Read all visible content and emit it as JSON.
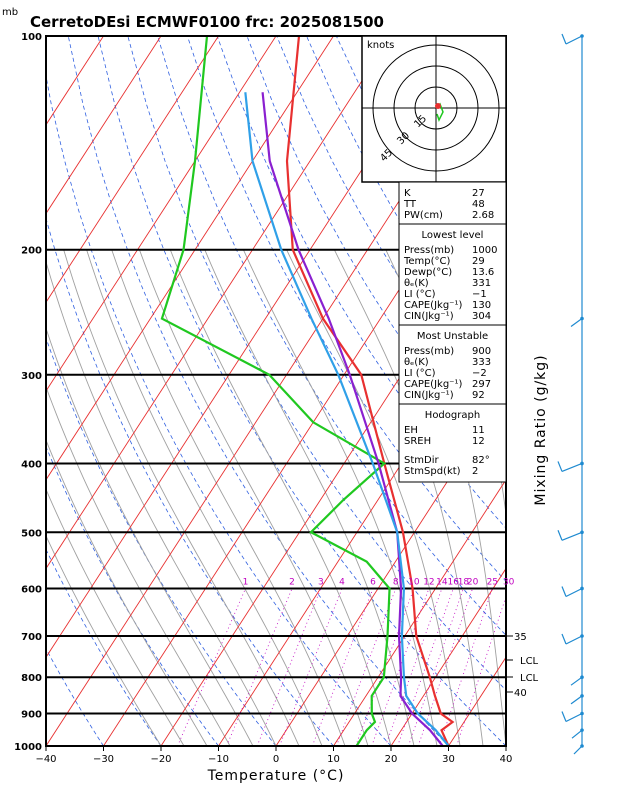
{
  "header": {
    "unit_mb": "mb",
    "title": "CerretoDEsi ECMWF0100  frc: 2025081500"
  },
  "chart_data": {
    "type": "line",
    "title": "CerretoDEsi ECMWF0100  frc: 2025081500",
    "xlabel": "Temperature (°C)",
    "ylabel": "Mixing Ratio (g/kg)",
    "xlim": [
      -40,
      40
    ],
    "ylim": [
      1000,
      100
    ],
    "x_ticks": [
      "−40",
      "−30",
      "−20",
      "−10",
      "0",
      "10",
      "20",
      "30",
      "40"
    ],
    "y_ticks": [
      "100",
      "200",
      "300",
      "400",
      "500",
      "600",
      "700",
      "800",
      "900",
      "1000"
    ],
    "mixing_ratio_labels": [
      "1",
      "2",
      "3",
      "4",
      "6",
      "8",
      "10",
      "12",
      "14",
      "16",
      "18",
      "20",
      "25",
      "30"
    ],
    "right_labels": [
      "35",
      "LCL",
      "LCL",
      "40"
    ],
    "series": [
      {
        "name": "Temperature",
        "color": "#e83030",
        "points": [
          [
            1000,
            30
          ],
          [
            950,
            27
          ],
          [
            925,
            28
          ],
          [
            900,
            25
          ],
          [
            850,
            22
          ],
          [
            800,
            19
          ],
          [
            700,
            12
          ],
          [
            600,
            6
          ],
          [
            500,
            -2
          ],
          [
            400,
            -13
          ],
          [
            300,
            -27
          ],
          [
            250,
            -40
          ],
          [
            200,
            -53
          ],
          [
            150,
            -64
          ],
          [
            100,
            -76
          ]
        ]
      },
      {
        "name": "Dewpoint",
        "color": "#20c820",
        "points": [
          [
            1000,
            14
          ],
          [
            950,
            14
          ],
          [
            925,
            14.5
          ],
          [
            900,
            13
          ],
          [
            850,
            11
          ],
          [
            800,
            11
          ],
          [
            700,
            7
          ],
          [
            600,
            2
          ],
          [
            550,
            -5
          ],
          [
            500,
            -18
          ],
          [
            450,
            -16
          ],
          [
            400,
            -13
          ],
          [
            350,
            -30
          ],
          [
            300,
            -43
          ],
          [
            250,
            -68
          ],
          [
            200,
            -72
          ],
          [
            150,
            -80
          ],
          [
            100,
            -92
          ]
        ]
      },
      {
        "name": "Parcel",
        "color": "#8a20d0",
        "points": [
          [
            1000,
            29
          ],
          [
            950,
            25
          ],
          [
            900,
            20
          ],
          [
            850,
            16
          ],
          [
            800,
            14
          ],
          [
            700,
            9
          ],
          [
            600,
            4
          ],
          [
            500,
            -3
          ],
          [
            400,
            -14
          ],
          [
            300,
            -29
          ],
          [
            250,
            -39
          ],
          [
            200,
            -52
          ],
          [
            150,
            -67
          ],
          [
            120,
            -76
          ]
        ]
      },
      {
        "name": "Parcel virtual",
        "color": "#30a0e8",
        "points": [
          [
            1000,
            30
          ],
          [
            950,
            26
          ],
          [
            900,
            21
          ],
          [
            850,
            17
          ],
          [
            800,
            14.5
          ],
          [
            700,
            9.5
          ],
          [
            600,
            4.5
          ],
          [
            500,
            -3
          ],
          [
            400,
            -15
          ],
          [
            300,
            -31
          ],
          [
            250,
            -42
          ],
          [
            200,
            -55
          ],
          [
            150,
            -70
          ],
          [
            120,
            -79
          ]
        ]
      }
    ],
    "wind_barbs": [
      {
        "p": 1000,
        "speed_kt": 2
      },
      {
        "p": 950,
        "speed_kt": 4
      },
      {
        "p": 900,
        "speed_kt": 10
      },
      {
        "p": 850,
        "speed_kt": 5
      },
      {
        "p": 800,
        "speed_kt": 5
      },
      {
        "p": 700,
        "speed_kt": 10
      },
      {
        "p": 600,
        "speed_kt": 10
      },
      {
        "p": 500,
        "speed_kt": 15
      },
      {
        "p": 400,
        "speed_kt": 15
      },
      {
        "p": 250,
        "speed_kt": 5
      },
      {
        "p": 100,
        "speed_kt": 10
      }
    ],
    "hodograph": {
      "unit": "knots",
      "rings": [
        "15",
        "30",
        "45"
      ]
    }
  },
  "indices": [
    {
      "label": "K",
      "value": "27"
    },
    {
      "label": "TT",
      "value": "48"
    },
    {
      "label": "PW(cm)",
      "value": "2.68"
    }
  ],
  "lowest_level": {
    "heading": "Lowest level",
    "rows": [
      {
        "label": "Press(mb)",
        "value": "1000"
      },
      {
        "label": "Temp(°C)",
        "value": "29"
      },
      {
        "label": "Dewp(°C)",
        "value": "13.6"
      },
      {
        "label": "θₑ(K)",
        "value": "331"
      },
      {
        "label": "LI (°C)",
        "value": "−1"
      },
      {
        "label": "CAPE(Jkg⁻¹)",
        "value": "130"
      },
      {
        "label": "CIN(Jkg⁻¹)",
        "value": "304"
      }
    ]
  },
  "most_unstable": {
    "heading": "Most Unstable",
    "rows": [
      {
        "label": "Press(mb)",
        "value": "900"
      },
      {
        "label": "θₑ(K)",
        "value": "333"
      },
      {
        "label": "LI (°C)",
        "value": "−2"
      },
      {
        "label": "CAPE(Jkg⁻¹)",
        "value": "297"
      },
      {
        "label": "CIN(Jkg⁻¹)",
        "value": "92"
      }
    ]
  },
  "hodograph_panel": {
    "heading": "Hodograph",
    "rows": [
      {
        "label": "EH",
        "value": "11"
      },
      {
        "label": "SREH",
        "value": "12"
      },
      {
        "label": "StmDir",
        "value": "82°"
      },
      {
        "label": "StmSpd(kt)",
        "value": "2"
      }
    ]
  }
}
